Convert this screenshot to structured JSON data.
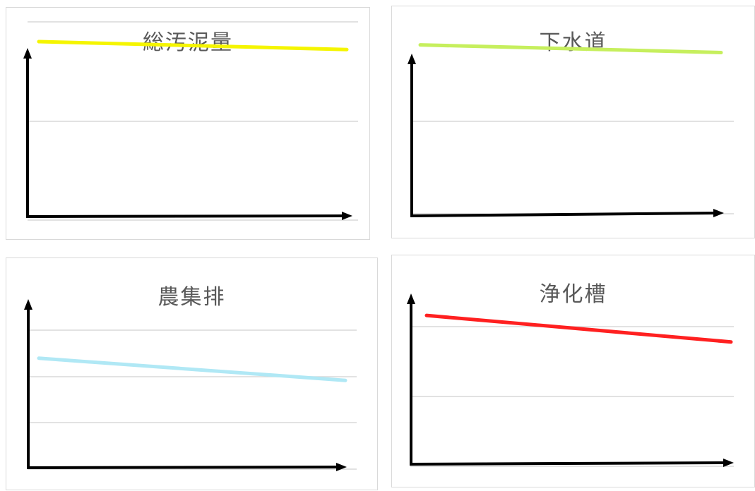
{
  "chart_data": [
    {
      "type": "line",
      "title": "総汚泥量",
      "xlabel": "",
      "ylabel": "",
      "ylim": [
        0,
        1
      ],
      "series": [
        {
          "color": "#f5f500",
          "values": [
            0.9,
            0.86
          ]
        }
      ]
    },
    {
      "type": "line",
      "title": "下水道",
      "xlabel": "",
      "ylabel": "",
      "ylim": [
        0,
        1
      ],
      "series": [
        {
          "color": "#c6ef5d",
          "values": [
            0.88,
            0.84
          ]
        }
      ]
    },
    {
      "type": "line",
      "title": "農集排",
      "xlabel": "",
      "ylabel": "",
      "ylim": [
        0,
        1
      ],
      "series": [
        {
          "color": "#b0e8f5",
          "values": [
            0.6,
            0.48
          ]
        }
      ]
    },
    {
      "type": "line",
      "title": "浄化槽",
      "xlabel": "",
      "ylabel": "",
      "ylim": [
        0,
        1
      ],
      "series": [
        {
          "color": "#ff2020",
          "values": [
            0.74,
            0.61
          ]
        }
      ]
    }
  ]
}
